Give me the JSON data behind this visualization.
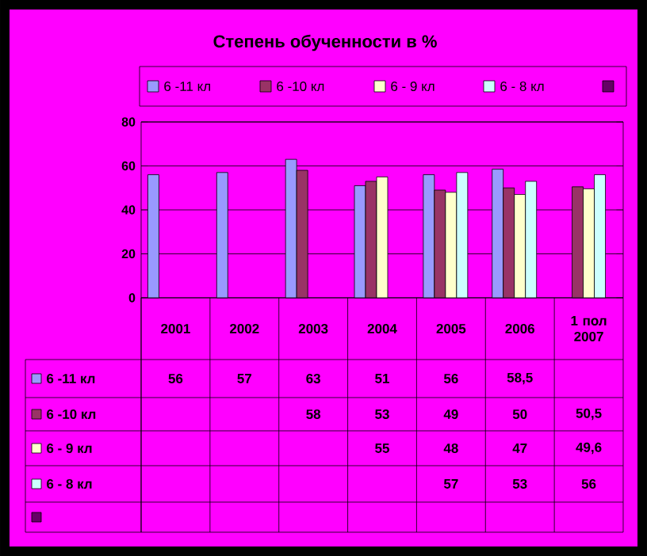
{
  "chart_data": {
    "type": "bar",
    "title": "Степень обученности в %",
    "categories": [
      "2001",
      "2002",
      "2003",
      "2004",
      "2005",
      "2006",
      "1 пол 2007"
    ],
    "series": [
      {
        "name": "6 -11 кл",
        "color": "#9999ff",
        "values": [
          56,
          57,
          63,
          51,
          56,
          58.5,
          null
        ],
        "value_labels": [
          "56",
          "57",
          "63",
          "51",
          "56",
          "58,5",
          null
        ]
      },
      {
        "name": "6 -10 кл",
        "color": "#993366",
        "values": [
          null,
          null,
          58,
          53,
          49,
          50,
          50.5
        ],
        "value_labels": [
          null,
          null,
          "58",
          "53",
          "49",
          "50",
          "50,5"
        ]
      },
      {
        "name": "6 - 9 кл",
        "color": "#ffffcc",
        "values": [
          null,
          null,
          null,
          55,
          48,
          47,
          49.6
        ],
        "value_labels": [
          null,
          null,
          null,
          "55",
          "48",
          "47",
          "49,6"
        ]
      },
      {
        "name": "6 - 8 кл",
        "color": "#ccffff",
        "values": [
          null,
          null,
          null,
          null,
          57,
          53,
          56
        ],
        "value_labels": [
          null,
          null,
          null,
          null,
          "57",
          "53",
          "56"
        ]
      },
      {
        "color": "#660066",
        "values": [
          null,
          null,
          null,
          null,
          null,
          null,
          null
        ]
      }
    ],
    "ylim": [
      0,
      80
    ],
    "yticks": [
      0,
      20,
      40,
      60,
      80
    ],
    "grid": "y",
    "legend": "top"
  }
}
